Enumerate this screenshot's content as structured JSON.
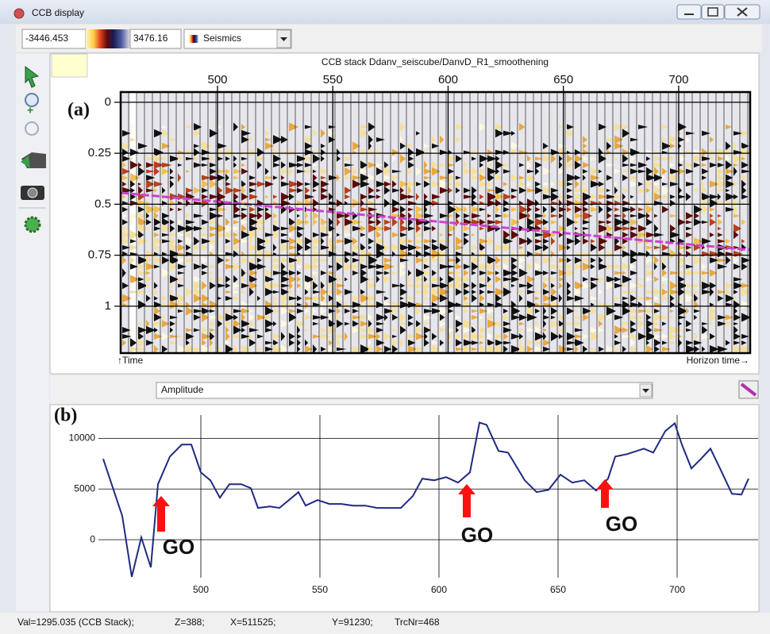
{
  "window": {
    "title": "CCB display"
  },
  "toolbar": {
    "min_value": "-3446.453",
    "max_value": "3476.16",
    "colortable": "Seismics"
  },
  "seismic": {
    "panel_label": "(a)",
    "title": "CCB stack Ddanv_seiscube/DanvD_R1_smoothening",
    "xlim": [
      458,
      731
    ],
    "xticks": [
      500,
      550,
      600,
      650,
      700
    ],
    "ylim": [
      -0.05,
      1.23
    ],
    "yticks": [
      0,
      0.25,
      0.5,
      0.75,
      1
    ],
    "y_label": "↑Time",
    "x_label": "Horizon time→"
  },
  "selector": {
    "attribute": "Amplitude"
  },
  "chart_data": {
    "type": "line",
    "panel_label": "(b)",
    "color": "#1f2a80",
    "grid": true,
    "xlim": [
      457,
      734
    ],
    "xticks": [
      500,
      550,
      600,
      650,
      700
    ],
    "ylim": [
      -3750,
      12300
    ],
    "yticks": [
      0,
      5000,
      10000
    ],
    "x": [
      459,
      467,
      471,
      475,
      479,
      482,
      487,
      492,
      496,
      500,
      504,
      508,
      512,
      517,
      521,
      524,
      529,
      533,
      537,
      541,
      544,
      549,
      554,
      559,
      564,
      569,
      574,
      579,
      584,
      589,
      593,
      598,
      603,
      608,
      613,
      617,
      620,
      625,
      629,
      636,
      641,
      646,
      651,
      656,
      661,
      666,
      671,
      674,
      679,
      686,
      690,
      695,
      699,
      702,
      706,
      710,
      714,
      718,
      723,
      727,
      730
    ],
    "values": [
      7970,
      2340,
      -3670,
      230,
      -2730,
      5470,
      8200,
      9380,
      9380,
      6640,
      5860,
      4140,
      5470,
      5470,
      5080,
      3130,
      3280,
      3130,
      3910,
      4690,
      3360,
      3910,
      3520,
      3520,
      3360,
      3360,
      3130,
      3130,
      3130,
      4300,
      6020,
      5860,
      6170,
      5630,
      6640,
      11560,
      11330,
      8750,
      8590,
      5860,
      4690,
      4920,
      6410,
      5630,
      5860,
      4840,
      6020,
      8200,
      8440,
      8980,
      8590,
      10700,
      11480,
      9380,
      7030,
      7970,
      8980,
      7030,
      4530,
      4450,
      6020
    ],
    "annotations": [
      "GO",
      "GO",
      "GO"
    ]
  },
  "status": [
    "Val=1295.035 (CCB Stack);",
    "Z=388;",
    "X=511525;",
    "Y=91230;",
    "TrcNr=468"
  ]
}
